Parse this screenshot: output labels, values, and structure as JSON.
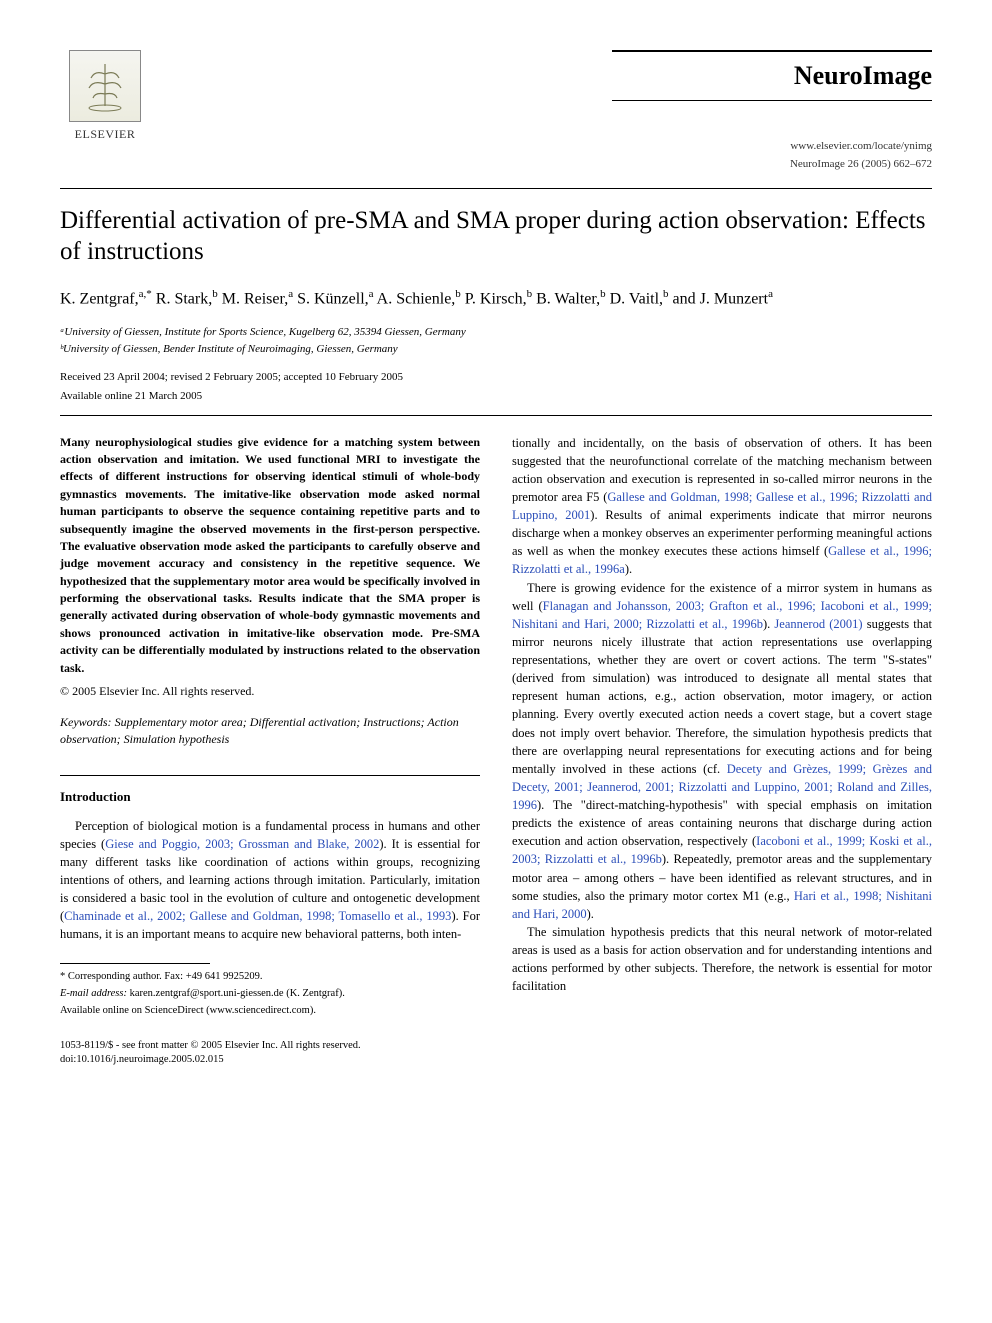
{
  "publisher": {
    "name": "ELSEVIER",
    "logo_alt": "tree"
  },
  "journal": {
    "title": "NeuroImage",
    "locate_url": "www.elsevier.com/locate/ynimg",
    "citation": "NeuroImage 26 (2005) 662–672"
  },
  "article": {
    "title": "Differential activation of pre-SMA and SMA proper during action observation: Effects of instructions",
    "authors_html": "K. Zentgraf,<sup>a,*</sup> R. Stark,<sup>b</sup> M. Reiser,<sup>a</sup> S. Künzell,<sup>a</sup> A. Schienle,<sup>b</sup> P. Kirsch,<sup>b</sup> B. Walter,<sup>b</sup> D. Vaitl,<sup>b</sup> and J. Munzert<sup>a</sup>",
    "affiliations": [
      "ᵃUniversity of Giessen, Institute for Sports Science, Kugelberg 62, 35394 Giessen, Germany",
      "ᵇUniversity of Giessen, Bender Institute of Neuroimaging, Giessen, Germany"
    ],
    "received": "Received 23 April 2004; revised 2 February 2005; accepted 10 February 2005",
    "available": "Available online 21 March 2005"
  },
  "abstract": "Many neurophysiological studies give evidence for a matching system between action observation and imitation. We used functional MRI to investigate the effects of different instructions for observing identical stimuli of whole-body gymnastics movements. The imitative-like observation mode asked normal human participants to observe the sequence containing repetitive parts and to subsequently imagine the observed movements in the first-person perspective. The evaluative observation mode asked the participants to carefully observe and judge movement accuracy and consistency in the repetitive sequence. We hypothesized that the supplementary motor area would be specifically involved in performing the observational tasks. Results indicate that the SMA proper is generally activated during observation of whole-body gymnastic movements and shows pronounced activation in imitative-like observation mode. Pre-SMA activity can be differentially modulated by instructions related to the observation task.",
  "copyright_abs": "© 2005 Elsevier Inc. All rights reserved.",
  "keywords_label": "Keywords:",
  "keywords": "Supplementary motor area; Differential activation; Instructions; Action observation; Simulation hypothesis",
  "intro_heading": "Introduction",
  "intro_para_left": "Perception of biological motion is a fundamental process in humans and other species (<span class=\"citation\">Giese and Poggio, 2003; Grossman and Blake, 2002</span>). It is essential for many different tasks like coordination of actions within groups, recognizing intentions of others, and learning actions through imitation. Particularly, imitation is considered a basic tool in the evolution of culture and ontogenetic development (<span class=\"citation\">Chaminade et al., 2002; Gallese and Goldman, 1998; Tomasello et al., 1993</span>). For humans, it is an important means to acquire new behavioral patterns, both inten-",
  "col_right_para1": "tionally and incidentally, on the basis of observation of others. It has been suggested that the neurofunctional correlate of the matching mechanism between action observation and execution is represented in so-called mirror neurons in the premotor area F5 (<span class=\"citation\">Gallese and Goldman, 1998; Gallese et al., 1996; Rizzolatti and Luppino, 2001</span>). Results of animal experiments indicate that mirror neurons discharge when a monkey observes an experimenter performing meaningful actions as well as when the monkey executes these actions himself (<span class=\"citation\">Gallese et al., 1996; Rizzolatti et al., 1996a</span>).",
  "col_right_para2": "There is growing evidence for the existence of a mirror system in humans as well (<span class=\"citation\">Flanagan and Johansson, 2003; Grafton et al., 1996; Iacoboni et al., 1999; Nishitani and Hari, 2000; Rizzolatti et al., 1996b</span>). <span class=\"citation\">Jeannerod (2001)</span> suggests that mirror neurons nicely illustrate that action representations use overlapping representations, whether they are overt or covert actions. The term \"S-states\" (derived from simulation) was introduced to designate all mental states that represent human actions, e.g., action observation, motor imagery, or action planning. Every overtly executed action needs a covert stage, but a covert stage does not imply overt behavior. Therefore, the simulation hypothesis predicts that there are overlapping neural representations for executing actions and for being mentally involved in these actions (cf. <span class=\"citation\">Decety and Grèzes, 1999; Grèzes and Decety, 2001; Jeannerod, 2001; Rizzolatti and Luppino, 2001; Roland and Zilles, 1996</span>). The \"direct-matching-hypothesis\" with special emphasis on imitation predicts the existence of areas containing neurons that discharge during action execution and action observation, respectively (<span class=\"citation\">Iacoboni et al., 1999; Koski et al., 2003; Rizzolatti et al., 1996b</span>). Repeatedly, premotor areas and the supplementary motor area – among others – have been identified as relevant structures, and in some studies, also the primary motor cortex M1 (e.g., <span class=\"citation\">Hari et al., 1998; Nishitani and Hari, 2000</span>).",
  "col_right_para3": "The simulation hypothesis predicts that this neural network of motor-related areas is used as a basis for action observation and for understanding intentions and actions performed by other subjects. Therefore, the network is essential for motor facilitation",
  "footnotes": {
    "corresponding": "* Corresponding author. Fax: +49 641 9925209.",
    "email_label": "E-mail address:",
    "email": "karen.zentgraf@sport.uni-giessen.de (K. Zentgraf).",
    "sciencedirect": "Available online on ScienceDirect (www.sciencedirect.com)."
  },
  "bottom": {
    "issn": "1053-8119/$ - see front matter © 2005 Elsevier Inc. All rights reserved.",
    "doi": "doi:10.1016/j.neuroimage.2005.02.015"
  },
  "colors": {
    "citation": "#2a4db8",
    "text": "#000000",
    "bg": "#ffffff"
  }
}
